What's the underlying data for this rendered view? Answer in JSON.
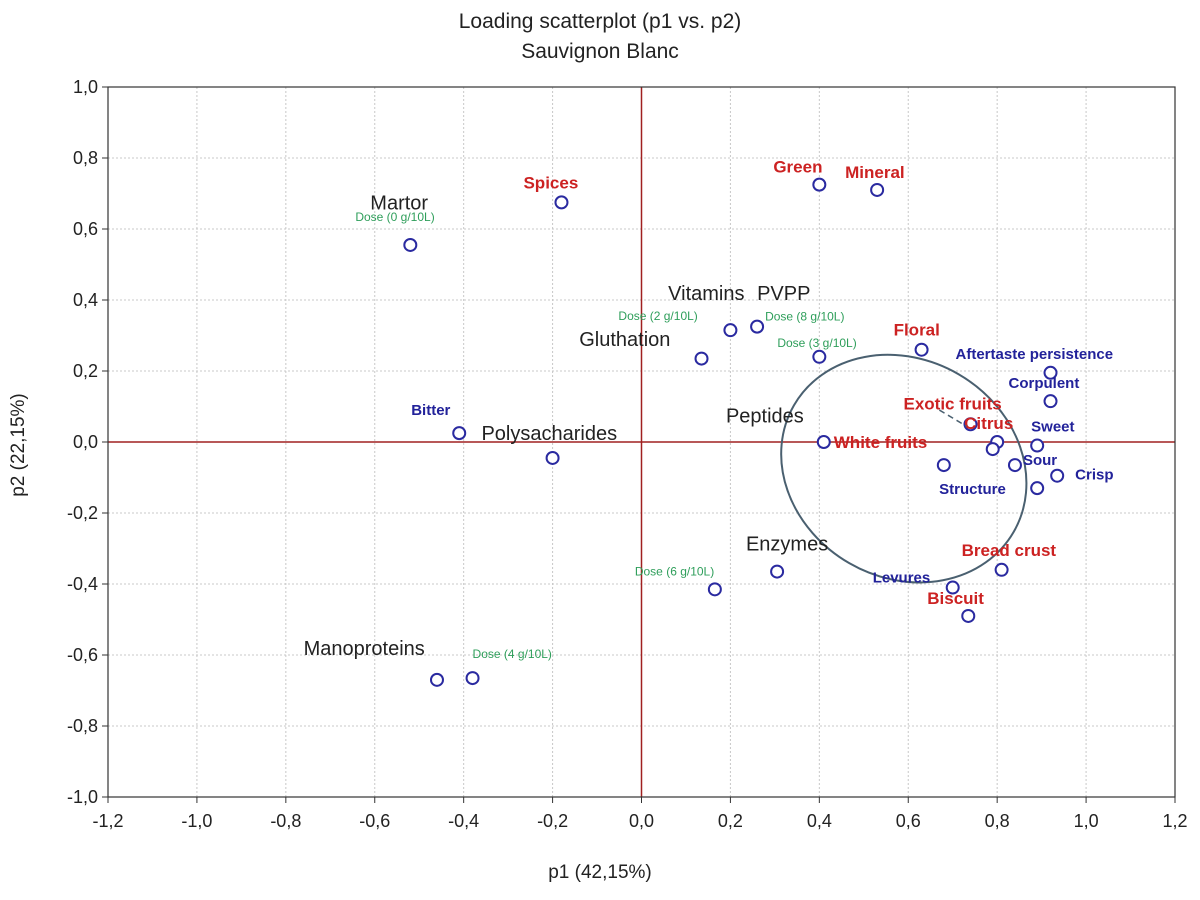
{
  "chart_data": {
    "type": "scatter",
    "title": "Loading scatterplot (p1 vs. p2)",
    "subtitle": "Sauvignon Blanc",
    "xlabel": "p1 (42,15%)",
    "ylabel": "p2 (22,15%)",
    "xlim": [
      -1.2,
      1.2
    ],
    "ylim": [
      -1.0,
      1.0
    ],
    "xticks": [
      "-1,2",
      "-1,0",
      "-0,8",
      "-0,6",
      "-0,4",
      "-0,2",
      "0,0",
      "0,2",
      "0,4",
      "0,6",
      "0,8",
      "1,0",
      "1,2"
    ],
    "yticks": [
      "1,0",
      "0,8",
      "0,6",
      "0,4",
      "0,2",
      "0,0",
      "-0,2",
      "-0,4",
      "-0,6",
      "-0,8",
      "-1,0"
    ],
    "grid": true,
    "colors": {
      "treatment": "#222222",
      "dose": "#2e9e5a",
      "sensory_red": "#cc2222",
      "sensory_blue": "#22229a",
      "marker": "#2a2aa0",
      "axis_zero": "#a02020",
      "ellipse": "#4a6070"
    },
    "points": [
      {
        "x": -0.52,
        "y": 0.555,
        "label": "Dose (0 g/10L)",
        "group": "dose"
      },
      {
        "x": -0.18,
        "y": 0.675,
        "label": "Spices",
        "group": "sensory_red"
      },
      {
        "x": 0.4,
        "y": 0.725,
        "label": "Green",
        "group": "sensory_red"
      },
      {
        "x": 0.53,
        "y": 0.71,
        "label": "Mineral",
        "group": "sensory_red"
      },
      {
        "x": 0.2,
        "y": 0.315,
        "label": "Dose (2 g/10L)",
        "group": "dose"
      },
      {
        "x": 0.26,
        "y": 0.325,
        "label": "Dose (8 g/10L)",
        "group": "dose"
      },
      {
        "x": 0.135,
        "y": 0.235,
        "label": "",
        "group": "treatment"
      },
      {
        "x": 0.4,
        "y": 0.24,
        "label": "Dose (3 g/10L)",
        "group": "dose"
      },
      {
        "x": 0.63,
        "y": 0.26,
        "label": "Floral",
        "group": "sensory_red"
      },
      {
        "x": 0.92,
        "y": 0.195,
        "label": "Aftertaste persistence",
        "group": "sensory_blue"
      },
      {
        "x": 0.92,
        "y": 0.115,
        "label": "Corpulent",
        "group": "sensory_blue"
      },
      {
        "x": 0.74,
        "y": 0.05,
        "label": "Exotic fruits",
        "group": "sensory_red"
      },
      {
        "x": 0.8,
        "y": 0.0,
        "label": "Citrus",
        "group": "sensory_red"
      },
      {
        "x": 0.89,
        "y": -0.01,
        "label": "Sweet",
        "group": "sensory_blue"
      },
      {
        "x": 0.41,
        "y": 0.0,
        "label": "White fruits",
        "group": "sensory_red"
      },
      {
        "x": 0.79,
        "y": -0.02,
        "label": "",
        "group": "sensory_red"
      },
      {
        "x": 0.68,
        "y": -0.065,
        "label": "",
        "group": "sensory_blue"
      },
      {
        "x": 0.84,
        "y": -0.065,
        "label": "Sour",
        "group": "sensory_blue"
      },
      {
        "x": 0.935,
        "y": -0.095,
        "label": "Crisp",
        "group": "sensory_blue"
      },
      {
        "x": 0.89,
        "y": -0.13,
        "label": "Structure",
        "group": "sensory_blue"
      },
      {
        "x": -0.41,
        "y": 0.025,
        "label": "Bitter",
        "group": "sensory_blue"
      },
      {
        "x": -0.2,
        "y": -0.045,
        "label": "",
        "group": "treatment"
      },
      {
        "x": 0.305,
        "y": -0.365,
        "label": "",
        "group": "treatment"
      },
      {
        "x": 0.165,
        "y": -0.415,
        "label": "Dose (6 g/10L)",
        "group": "dose"
      },
      {
        "x": 0.81,
        "y": -0.36,
        "label": "Bread crust",
        "group": "sensory_red"
      },
      {
        "x": 0.7,
        "y": -0.41,
        "label": "Levures",
        "group": "sensory_blue"
      },
      {
        "x": 0.735,
        "y": -0.49,
        "label": "Biscuit",
        "group": "sensory_red"
      },
      {
        "x": -0.46,
        "y": -0.67,
        "label": "",
        "group": "treatment"
      },
      {
        "x": -0.38,
        "y": -0.665,
        "label": "Dose (4 g/10L)",
        "group": "dose"
      }
    ],
    "annotations": [
      {
        "text": "Martor",
        "x": -0.61,
        "y": 0.655,
        "group": "treatment"
      },
      {
        "text": "Vitamins",
        "x": 0.06,
        "y": 0.4,
        "group": "treatment"
      },
      {
        "text": "PVPP",
        "x": 0.26,
        "y": 0.4,
        "group": "treatment"
      },
      {
        "text": "Gluthation",
        "x": -0.14,
        "y": 0.27,
        "group": "treatment"
      },
      {
        "text": "Polysacharides",
        "x": -0.36,
        "y": 0.005,
        "group": "treatment"
      },
      {
        "text": "Peptides",
        "x": 0.19,
        "y": 0.055,
        "group": "treatment"
      },
      {
        "text": "Enzymes",
        "x": 0.235,
        "y": -0.305,
        "group": "treatment"
      },
      {
        "text": "Manoproteins",
        "x": -0.76,
        "y": -0.6,
        "group": "treatment"
      }
    ],
    "ellipse": {
      "cx": 0.59,
      "cy": -0.075,
      "rx": 0.62,
      "ry": 0.53,
      "rotation_deg": 30
    }
  }
}
